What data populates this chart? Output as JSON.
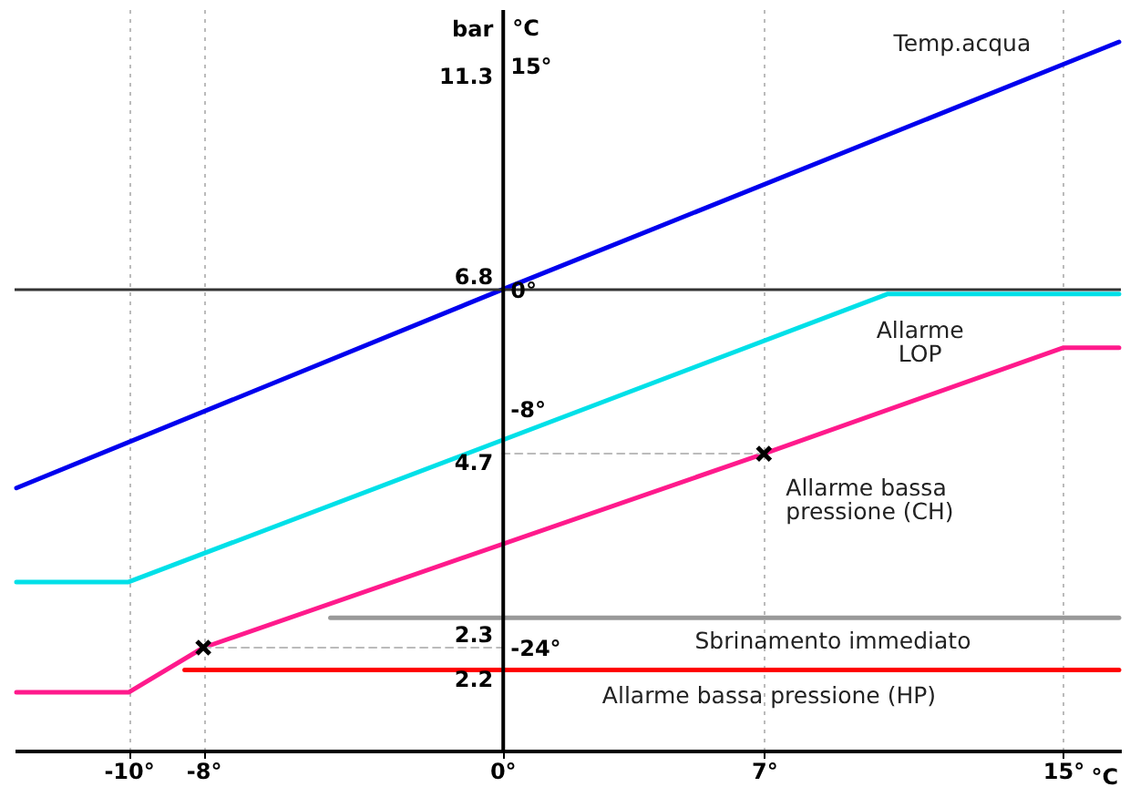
{
  "chart_data": {
    "type": "line",
    "xlabel": "°C",
    "ylabel": "°C",
    "xlim": [
      -13.05,
      16.55
    ],
    "xticks": [
      {
        "value": -10,
        "label": "-10°"
      },
      {
        "value": -8,
        "label": "-8°"
      },
      {
        "value": 0,
        "label": "0°"
      },
      {
        "value": 7,
        "label": "7°"
      },
      {
        "value": 15,
        "label": "15°"
      }
    ],
    "ylim": [
      -30.9,
      18.8
    ],
    "yticks": [
      {
        "value": 15,
        "label": "15°"
      },
      {
        "value": 0,
        "label": "0°"
      },
      {
        "value": -8,
        "label": "-8°"
      },
      {
        "value": -24,
        "label": "-24°"
      }
    ],
    "grid": "x",
    "series": [
      {
        "name": "Temp.acqua",
        "color": "#0000ee",
        "x": [
          -13,
          0,
          16.5
        ],
        "values": [
          -13.3,
          0,
          16.6
        ]
      },
      {
        "name": "Allarme\nLOP",
        "color": "#00e0e8",
        "x": [
          -13,
          -10,
          10.3,
          16.5
        ],
        "values": [
          -19.6,
          -19.6,
          -0.3,
          -0.3
        ]
      },
      {
        "name": "Allarme bassa\npressione (CH)",
        "color": "#ff1a8c",
        "x": [
          -13,
          -10,
          -8,
          7,
          15,
          16.5
        ],
        "values": [
          -27,
          -27,
          -24,
          -11,
          -3.9,
          -3.9
        ]
      },
      {
        "name": "Sbrinamento immediato",
        "color": "#999999",
        "x": [
          -4.6,
          16.5
        ],
        "values": [
          -22,
          -22
        ]
      },
      {
        "name": "Allarme bassa pressione (HP)",
        "color": "#ff0000",
        "x": [
          -8.5,
          16.5
        ],
        "values": [
          -25.5,
          -25.5
        ]
      },
      {
        "color": "#bbbbbb",
        "line_style": "dashed",
        "x": [
          0,
          7
        ],
        "values": [
          -11,
          -11
        ]
      },
      {
        "color": "#bbbbbb",
        "line_style": "dashed",
        "x": [
          -8,
          0
        ],
        "values": [
          -24,
          -24
        ]
      },
      {
        "type": "scatter",
        "marker": "cross",
        "color": "#000000",
        "x": [
          -8,
          7
        ],
        "values": [
          -24,
          -11
        ]
      }
    ],
    "ref_lines": [
      {
        "axis": "y",
        "value": 0,
        "color": "#333333"
      }
    ],
    "annotations": [
      "bar",
      "11.3",
      {
        "text": "6.8",
        "y": 0
      },
      {
        "text": "4.7",
        "y": -11
      },
      {
        "text": "2.3",
        "y": -24
      },
      {
        "text": "2.2",
        "y": -25.5
      }
    ]
  }
}
